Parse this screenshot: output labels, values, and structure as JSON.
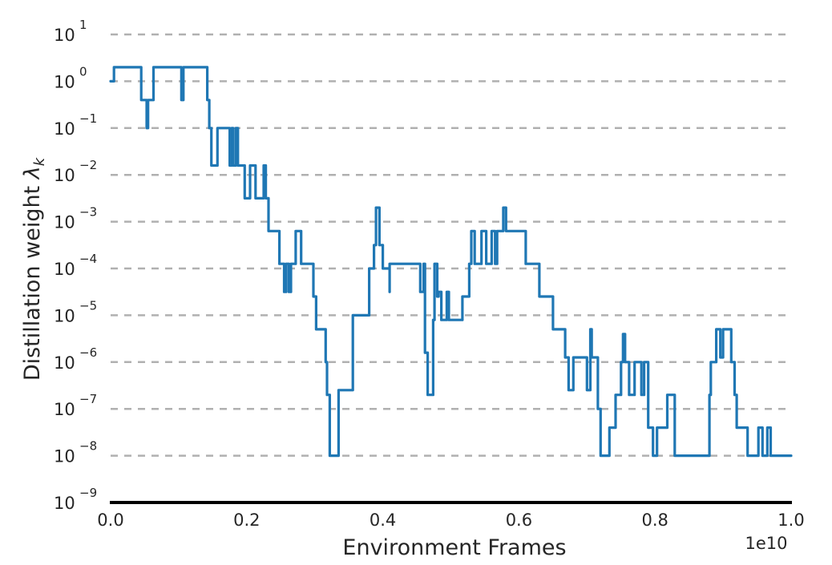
{
  "chart_data": {
    "type": "line",
    "style": "step",
    "title": "",
    "xlabel": "Environment Frames",
    "ylabel": "Distillation weight λ_k",
    "ylabel_text": "Distillation weight ",
    "ylabel_symbol": "λ",
    "ylabel_subscript": "k",
    "x_offset_label": "1e10",
    "xscale": "linear",
    "yscale": "log",
    "xlim": [
      0.0,
      1.0
    ],
    "ylim": [
      1e-09,
      10
    ],
    "x_ticks": [
      "0.0",
      "0.2",
      "0.4",
      "0.6",
      "0.8",
      "1.0"
    ],
    "x_tick_values": [
      0.0,
      0.2,
      0.4,
      0.6,
      0.8,
      1.0
    ],
    "y_ticks": [
      {
        "base": "10",
        "exp": "1",
        "value": 1
      },
      {
        "base": "10",
        "exp": "0",
        "value": 0
      },
      {
        "base": "10",
        "exp": "−1",
        "value": -1
      },
      {
        "base": "10",
        "exp": "−2",
        "value": -2
      },
      {
        "base": "10",
        "exp": "−3",
        "value": -3
      },
      {
        "base": "10",
        "exp": "−4",
        "value": -4
      },
      {
        "base": "10",
        "exp": "−5",
        "value": -5
      },
      {
        "base": "10",
        "exp": "−6",
        "value": -6
      },
      {
        "base": "10",
        "exp": "−7",
        "value": -7
      },
      {
        "base": "10",
        "exp": "−8",
        "value": -8
      },
      {
        "base": "10",
        "exp": "−9",
        "value": -9
      }
    ],
    "grid": {
      "axis": "y",
      "style": "dashed",
      "color": "#b0b0b0"
    },
    "legend": null,
    "series": [
      {
        "name": "distillation_weight",
        "color": "#1f77b4",
        "note": "points are [x (×1e10), log10(y)], step-wise",
        "points": [
          [
            0.0,
            0.0
          ],
          [
            0.005,
            0.0
          ],
          [
            0.005,
            0.3
          ],
          [
            0.045,
            0.3
          ],
          [
            0.045,
            -0.4
          ],
          [
            0.053,
            -0.4
          ],
          [
            0.053,
            -1.0
          ],
          [
            0.055,
            -1.0
          ],
          [
            0.055,
            -0.4
          ],
          [
            0.063,
            -0.4
          ],
          [
            0.063,
            0.3
          ],
          [
            0.104,
            0.3
          ],
          [
            0.104,
            -0.4
          ],
          [
            0.107,
            -0.4
          ],
          [
            0.107,
            0.3
          ],
          [
            0.142,
            0.3
          ],
          [
            0.142,
            -0.4
          ],
          [
            0.145,
            -0.4
          ],
          [
            0.145,
            -1.0
          ],
          [
            0.148,
            -1.0
          ],
          [
            0.148,
            -1.8
          ],
          [
            0.157,
            -1.8
          ],
          [
            0.157,
            -1.0
          ],
          [
            0.175,
            -1.0
          ],
          [
            0.175,
            -1.8
          ],
          [
            0.178,
            -1.8
          ],
          [
            0.178,
            -1.0
          ],
          [
            0.18,
            -1.0
          ],
          [
            0.18,
            -1.8
          ],
          [
            0.184,
            -1.8
          ],
          [
            0.184,
            -1.0
          ],
          [
            0.187,
            -1.0
          ],
          [
            0.187,
            -1.8
          ],
          [
            0.197,
            -1.8
          ],
          [
            0.197,
            -2.5
          ],
          [
            0.205,
            -2.5
          ],
          [
            0.205,
            -1.8
          ],
          [
            0.213,
            -1.8
          ],
          [
            0.213,
            -2.5
          ],
          [
            0.225,
            -2.5
          ],
          [
            0.225,
            -1.8
          ],
          [
            0.228,
            -1.8
          ],
          [
            0.228,
            -2.5
          ],
          [
            0.232,
            -2.5
          ],
          [
            0.232,
            -3.2
          ],
          [
            0.248,
            -3.2
          ],
          [
            0.248,
            -3.9
          ],
          [
            0.255,
            -3.9
          ],
          [
            0.255,
            -4.5
          ],
          [
            0.258,
            -4.5
          ],
          [
            0.258,
            -3.9
          ],
          [
            0.262,
            -3.9
          ],
          [
            0.262,
            -4.5
          ],
          [
            0.265,
            -4.5
          ],
          [
            0.265,
            -3.9
          ],
          [
            0.272,
            -3.9
          ],
          [
            0.272,
            -3.2
          ],
          [
            0.28,
            -3.2
          ],
          [
            0.28,
            -3.9
          ],
          [
            0.298,
            -3.9
          ],
          [
            0.298,
            -4.6
          ],
          [
            0.302,
            -4.6
          ],
          [
            0.302,
            -5.3
          ],
          [
            0.316,
            -5.3
          ],
          [
            0.316,
            -6.0
          ],
          [
            0.318,
            -6.0
          ],
          [
            0.318,
            -6.7
          ],
          [
            0.322,
            -6.7
          ],
          [
            0.322,
            -8.0
          ],
          [
            0.335,
            -8.0
          ],
          [
            0.335,
            -6.6
          ],
          [
            0.356,
            -6.6
          ],
          [
            0.356,
            -5.0
          ],
          [
            0.38,
            -5.0
          ],
          [
            0.38,
            -4.0
          ],
          [
            0.387,
            -4.0
          ],
          [
            0.387,
            -3.5
          ],
          [
            0.39,
            -3.5
          ],
          [
            0.39,
            -2.7
          ],
          [
            0.395,
            -2.7
          ],
          [
            0.395,
            -3.5
          ],
          [
            0.4,
            -3.5
          ],
          [
            0.4,
            -4.0
          ],
          [
            0.41,
            -4.0
          ],
          [
            0.41,
            -4.5
          ],
          [
            0.41,
            -3.9
          ],
          [
            0.455,
            -3.9
          ],
          [
            0.455,
            -4.5
          ],
          [
            0.46,
            -4.5
          ],
          [
            0.46,
            -3.9
          ],
          [
            0.462,
            -3.9
          ],
          [
            0.462,
            -5.8
          ],
          [
            0.466,
            -5.8
          ],
          [
            0.466,
            -6.7
          ],
          [
            0.474,
            -6.7
          ],
          [
            0.474,
            -5.1
          ],
          [
            0.476,
            -5.1
          ],
          [
            0.476,
            -3.9
          ],
          [
            0.48,
            -3.9
          ],
          [
            0.48,
            -4.6
          ],
          [
            0.482,
            -4.6
          ],
          [
            0.482,
            -4.5
          ],
          [
            0.486,
            -4.5
          ],
          [
            0.486,
            -5.1
          ],
          [
            0.494,
            -5.1
          ],
          [
            0.494,
            -4.5
          ],
          [
            0.497,
            -4.5
          ],
          [
            0.497,
            -5.1
          ],
          [
            0.517,
            -5.1
          ],
          [
            0.517,
            -4.6
          ],
          [
            0.527,
            -4.6
          ],
          [
            0.527,
            -3.9
          ],
          [
            0.53,
            -3.9
          ],
          [
            0.53,
            -3.2
          ],
          [
            0.535,
            -3.2
          ],
          [
            0.535,
            -3.9
          ],
          [
            0.545,
            -3.9
          ],
          [
            0.545,
            -3.2
          ],
          [
            0.552,
            -3.2
          ],
          [
            0.552,
            -3.9
          ],
          [
            0.56,
            -3.9
          ],
          [
            0.56,
            -3.2
          ],
          [
            0.565,
            -3.2
          ],
          [
            0.565,
            -3.9
          ],
          [
            0.568,
            -3.9
          ],
          [
            0.568,
            -3.2
          ],
          [
            0.577,
            -3.2
          ],
          [
            0.577,
            -2.7
          ],
          [
            0.581,
            -2.7
          ],
          [
            0.581,
            -3.2
          ],
          [
            0.61,
            -3.2
          ],
          [
            0.61,
            -3.9
          ],
          [
            0.63,
            -3.9
          ],
          [
            0.63,
            -4.6
          ],
          [
            0.64,
            -4.6
          ],
          [
            0.64,
            -4.6
          ],
          [
            0.65,
            -4.6
          ],
          [
            0.65,
            -5.3
          ],
          [
            0.668,
            -5.3
          ],
          [
            0.668,
            -5.9
          ],
          [
            0.673,
            -5.9
          ],
          [
            0.673,
            -6.6
          ],
          [
            0.68,
            -6.6
          ],
          [
            0.68,
            -5.9
          ],
          [
            0.7,
            -5.9
          ],
          [
            0.7,
            -6.6
          ],
          [
            0.705,
            -6.6
          ],
          [
            0.705,
            -5.3
          ],
          [
            0.707,
            -5.3
          ],
          [
            0.707,
            -5.9
          ],
          [
            0.716,
            -5.9
          ],
          [
            0.716,
            -7.0
          ],
          [
            0.72,
            -7.0
          ],
          [
            0.72,
            -8.0
          ],
          [
            0.733,
            -8.0
          ],
          [
            0.733,
            -7.4
          ],
          [
            0.742,
            -7.4
          ],
          [
            0.742,
            -6.7
          ],
          [
            0.75,
            -6.7
          ],
          [
            0.75,
            -6.0
          ],
          [
            0.753,
            -6.0
          ],
          [
            0.753,
            -5.4
          ],
          [
            0.756,
            -5.4
          ],
          [
            0.756,
            -6.0
          ],
          [
            0.762,
            -6.0
          ],
          [
            0.762,
            -6.7
          ],
          [
            0.77,
            -6.7
          ],
          [
            0.77,
            -6.0
          ],
          [
            0.78,
            -6.0
          ],
          [
            0.78,
            -6.7
          ],
          [
            0.784,
            -6.7
          ],
          [
            0.784,
            -6.0
          ],
          [
            0.79,
            -6.0
          ],
          [
            0.79,
            -7.4
          ],
          [
            0.797,
            -7.4
          ],
          [
            0.797,
            -8.0
          ],
          [
            0.803,
            -8.0
          ],
          [
            0.803,
            -7.4
          ],
          [
            0.818,
            -7.4
          ],
          [
            0.818,
            -6.7
          ],
          [
            0.829,
            -6.7
          ],
          [
            0.829,
            -8.0
          ],
          [
            0.88,
            -8.0
          ],
          [
            0.88,
            -6.7
          ],
          [
            0.882,
            -6.7
          ],
          [
            0.882,
            -6.0
          ],
          [
            0.89,
            -6.0
          ],
          [
            0.89,
            -5.3
          ],
          [
            0.896,
            -5.3
          ],
          [
            0.896,
            -5.9
          ],
          [
            0.9,
            -5.9
          ],
          [
            0.9,
            -5.3
          ],
          [
            0.912,
            -5.3
          ],
          [
            0.912,
            -6.0
          ],
          [
            0.917,
            -6.0
          ],
          [
            0.917,
            -6.7
          ],
          [
            0.92,
            -6.7
          ],
          [
            0.92,
            -7.4
          ],
          [
            0.936,
            -7.4
          ],
          [
            0.936,
            -8.0
          ],
          [
            0.952,
            -8.0
          ],
          [
            0.952,
            -7.4
          ],
          [
            0.958,
            -7.4
          ],
          [
            0.958,
            -8.0
          ],
          [
            0.965,
            -8.0
          ],
          [
            0.965,
            -7.4
          ],
          [
            0.97,
            -7.4
          ],
          [
            0.97,
            -8.0
          ],
          [
            1.0,
            -8.0
          ]
        ]
      }
    ]
  },
  "labels": {
    "xlabel": "Environment Frames",
    "x_offset": "1e10"
  }
}
